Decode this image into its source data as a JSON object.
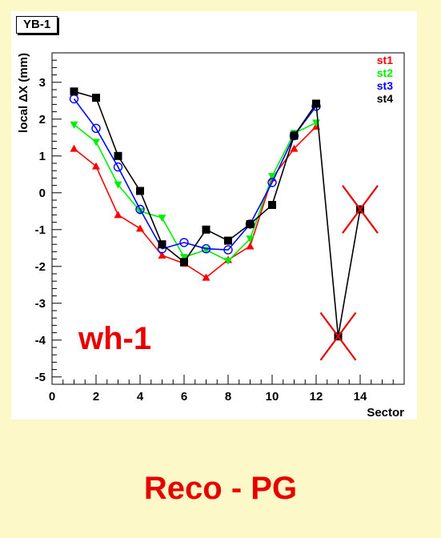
{
  "page": {
    "background": "#fdf8c8",
    "caption": "Reco - PG",
    "caption_color": "#e60000"
  },
  "chart_data": {
    "type": "line",
    "title": "YB-1",
    "xlabel": "Sector",
    "ylabel": "local ΔX (mm)",
    "xlim": [
      0,
      16
    ],
    "ylim": [
      -5.2,
      3.8
    ],
    "xticks": [
      0,
      2,
      4,
      6,
      8,
      10,
      12,
      14
    ],
    "yticks": [
      -5,
      -4,
      -3,
      -2,
      -1,
      0,
      1,
      2,
      3
    ],
    "annotation": {
      "text": "wh-1",
      "color": "#e60000"
    },
    "legend_placement": "top-right",
    "series": [
      {
        "name": "st1",
        "color": "#ff0000",
        "marker": "triangle-up",
        "x": [
          1,
          2,
          3,
          4,
          5,
          6,
          7,
          8,
          9,
          10,
          11,
          12
        ],
        "y": [
          1.2,
          0.72,
          -0.6,
          -0.97,
          -1.7,
          -1.92,
          -2.3,
          -1.82,
          -1.45,
          0.4,
          1.2,
          1.8
        ]
      },
      {
        "name": "st2",
        "color": "#00ee00",
        "marker": "triangle-down",
        "x": [
          1,
          2,
          3,
          4,
          5,
          6,
          7,
          8,
          9,
          10,
          11,
          12
        ],
        "y": [
          1.85,
          1.38,
          0.22,
          -0.5,
          -0.68,
          -1.75,
          -1.55,
          -1.85,
          -1.25,
          0.45,
          1.62,
          1.9
        ]
      },
      {
        "name": "st3",
        "color": "#0000ff",
        "marker": "open-circle",
        "x": [
          1,
          2,
          3,
          4,
          5,
          6,
          7,
          8,
          9,
          10,
          11,
          12
        ],
        "y": [
          2.55,
          1.75,
          0.7,
          -0.45,
          -1.52,
          -1.35,
          -1.52,
          -1.55,
          -0.85,
          0.28,
          1.55,
          2.35
        ]
      },
      {
        "name": "st4",
        "color": "#000000",
        "marker": "square",
        "x": [
          1,
          2,
          3,
          4,
          5,
          6,
          7,
          8,
          9,
          10,
          11,
          12,
          13,
          14
        ],
        "y": [
          2.75,
          2.58,
          1.0,
          0.05,
          -1.4,
          -1.88,
          -1.0,
          -1.3,
          -0.85,
          -0.33,
          1.55,
          2.42,
          -3.9,
          -0.45
        ]
      }
    ],
    "crossed_out_points": [
      {
        "x": 13,
        "y": -3.9
      },
      {
        "x": 14,
        "y": -0.45
      }
    ]
  }
}
